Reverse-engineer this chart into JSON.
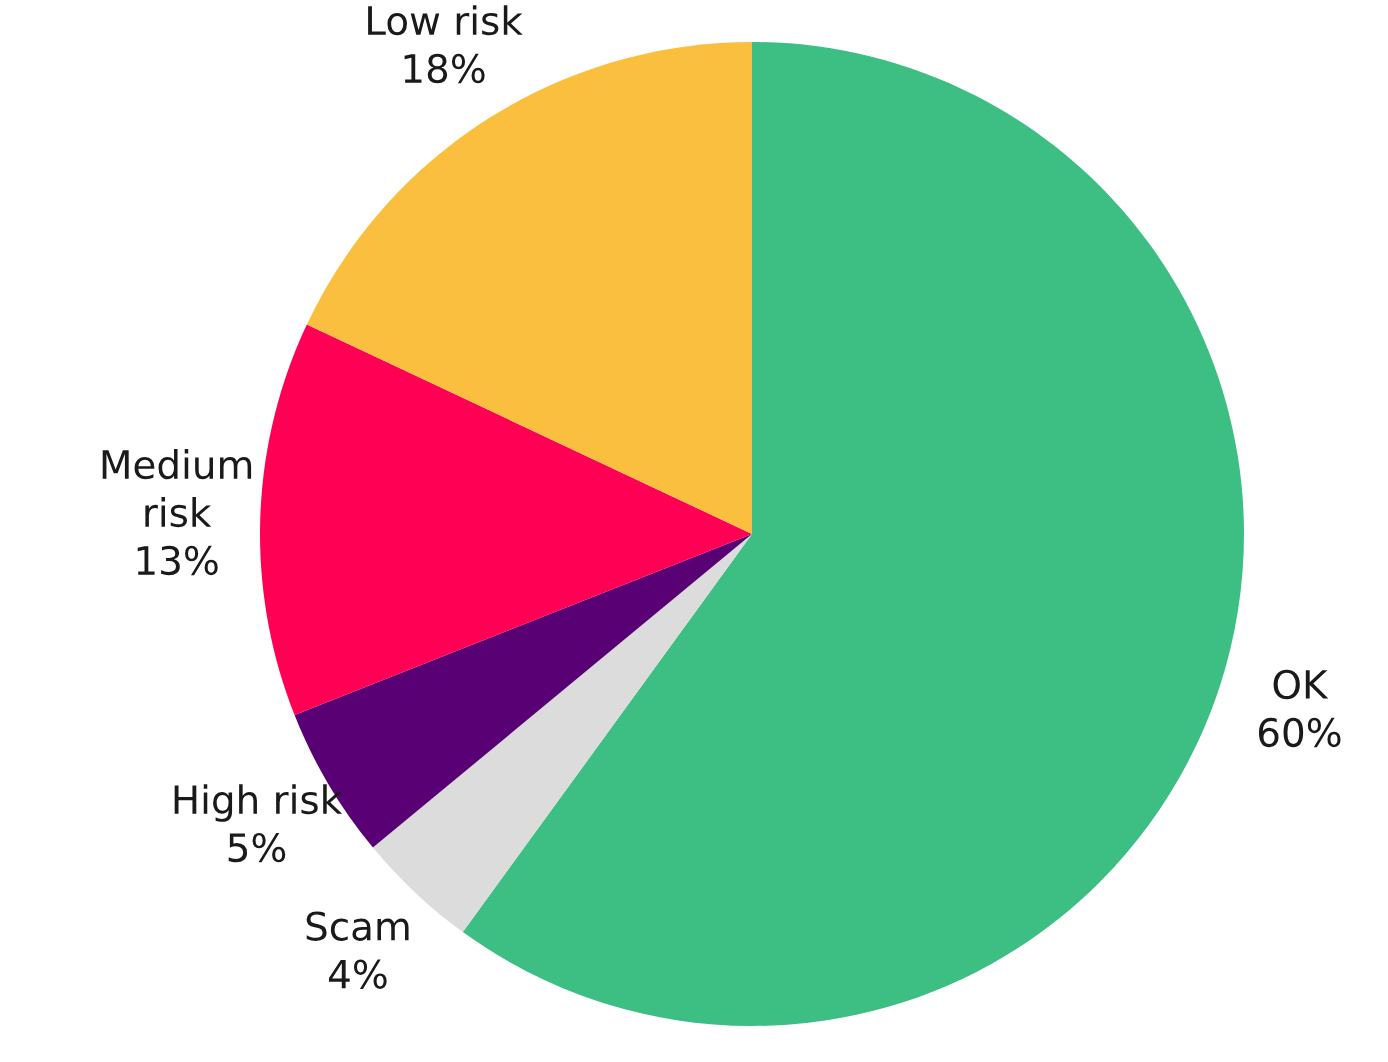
{
  "chart_data": {
    "type": "pie",
    "categories": [
      "OK",
      "Scam",
      "High risk",
      "Medium\nrisk",
      "Low risk"
    ],
    "values": [
      60,
      4,
      5,
      13,
      18
    ],
    "value_labels": [
      "60%",
      "4%",
      "5%",
      "13%",
      "18%"
    ],
    "colors": [
      "#3dbf84",
      "#dcdcdc",
      "#5a0075",
      "#ff0055",
      "#fbbf3f"
    ],
    "legend": false
  }
}
